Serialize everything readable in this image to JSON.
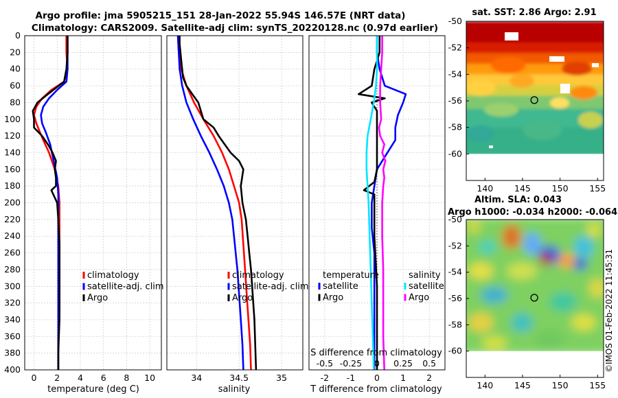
{
  "header": {
    "title_line1": "Argo profile: jma 5905215_151 28-Jan-2022 55.94S 146.57E (NRT data)",
    "title_line2": "Climatology: CARS2009. Satellite-adj clim: synTS_20220128.nc (0.97d earlier)"
  },
  "watermark": "©IMOS 01-Feb-2022 11:45:31",
  "colors": {
    "climatology": "#ff0000",
    "satellite": "#0000ff",
    "argo": "#000000",
    "salinity_satellite": "#00e5ff",
    "salinity_argo": "#ff00ff",
    "grid": "#c8c8c8"
  },
  "chart_data": [
    {
      "id": "temperature",
      "type": "line",
      "xlabel": "temperature (deg C)",
      "ylabel": "",
      "xlim": [
        -0.8,
        11
      ],
      "ylim": [
        400,
        0
      ],
      "xticks": [
        0,
        2,
        4,
        6,
        8,
        10
      ],
      "xtick_labels": [
        "0",
        "2",
        "4",
        "6",
        "8",
        "10"
      ],
      "yticks": [
        0,
        20,
        40,
        60,
        80,
        100,
        120,
        140,
        160,
        180,
        200,
        220,
        240,
        260,
        280,
        300,
        320,
        340,
        360,
        380,
        400
      ],
      "legend": {
        "position": "right",
        "items": [
          {
            "label": "climatology",
            "color": "#ff0000"
          },
          {
            "label": "satellite-adj. clim",
            "color": "#0000ff"
          },
          {
            "label": "Argo",
            "color": "#000000"
          }
        ]
      },
      "series": [
        {
          "name": "climatology",
          "color": "#ff0000",
          "x": [
            2.8,
            2.8,
            2.9,
            2.6,
            1.5,
            0.7,
            0.2,
            0.0,
            0.2,
            0.5,
            0.8,
            1.3,
            1.8,
            2.1,
            2.2,
            2.2,
            2.2,
            2.2,
            2.2,
            2.2,
            2.1,
            2.1,
            2.1
          ],
          "y": [
            0,
            20,
            40,
            55,
            65,
            75,
            85,
            95,
            105,
            115,
            125,
            140,
            160,
            180,
            200,
            220,
            250,
            280,
            300,
            330,
            360,
            390,
            400
          ]
        },
        {
          "name": "satellite-adj. clim",
          "color": "#0000ff",
          "x": [
            2.9,
            2.9,
            2.9,
            2.8,
            2.0,
            1.3,
            0.8,
            0.6,
            0.7,
            1.0,
            1.4,
            1.7,
            2.0,
            2.1,
            2.1,
            2.1,
            2.1,
            2.1,
            2.1,
            2.1,
            2.1
          ],
          "y": [
            0,
            20,
            40,
            55,
            65,
            75,
            85,
            95,
            105,
            115,
            130,
            150,
            170,
            190,
            210,
            240,
            280,
            310,
            340,
            380,
            400
          ]
        },
        {
          "name": "Argo",
          "color": "#000000",
          "x": [
            2.9,
            2.9,
            2.8,
            2.6,
            1.2,
            0.3,
            -0.1,
            0.0,
            0.0,
            0.7,
            1.2,
            1.6,
            1.9,
            1.8,
            1.9,
            1.9,
            1.5,
            2.0,
            2.1,
            2.2,
            2.2,
            2.2,
            2.1,
            2.1
          ],
          "y": [
            0,
            20,
            40,
            55,
            70,
            80,
            90,
            100,
            110,
            120,
            130,
            140,
            150,
            160,
            170,
            180,
            185,
            200,
            220,
            250,
            300,
            340,
            380,
            400
          ]
        }
      ]
    },
    {
      "id": "salinity",
      "type": "line",
      "xlabel": "salinity",
      "ylabel": "",
      "xlim": [
        33.65,
        35.25
      ],
      "ylim": [
        400,
        0
      ],
      "xticks": [
        34,
        34.5,
        35
      ],
      "xtick_labels": [
        "34",
        "34.5",
        "35"
      ],
      "legend": {
        "position": "right",
        "items": [
          {
            "label": "climatology",
            "color": "#ff0000"
          },
          {
            "label": "satellite-adj. clim",
            "color": "#0000ff"
          },
          {
            "label": "Argo",
            "color": "#000000"
          }
        ]
      },
      "series": [
        {
          "name": "climatology",
          "color": "#ff0000",
          "x": [
            33.78,
            33.79,
            33.82,
            33.88,
            33.97,
            34.08,
            34.2,
            34.3,
            34.38,
            34.44,
            34.5,
            34.53,
            34.55,
            34.57,
            34.59,
            34.61,
            34.63,
            34.64
          ],
          "y": [
            0,
            20,
            40,
            60,
            80,
            100,
            120,
            140,
            160,
            180,
            200,
            220,
            250,
            280,
            310,
            340,
            370,
            400
          ]
        },
        {
          "name": "satellite-adj. clim",
          "color": "#0000ff",
          "x": [
            33.78,
            33.79,
            33.8,
            33.83,
            33.88,
            33.96,
            34.05,
            34.15,
            34.24,
            34.32,
            34.38,
            34.42,
            34.45,
            34.48,
            34.5,
            34.52,
            34.54,
            34.55
          ],
          "y": [
            0,
            20,
            40,
            60,
            80,
            100,
            120,
            140,
            160,
            180,
            200,
            220,
            250,
            280,
            310,
            340,
            370,
            400
          ]
        },
        {
          "name": "Argo",
          "color": "#000000",
          "x": [
            33.8,
            33.8,
            33.82,
            33.84,
            33.88,
            33.95,
            34.02,
            34.08,
            34.2,
            34.26,
            34.33,
            34.4,
            34.5,
            34.55,
            34.52,
            34.54,
            34.58,
            34.6,
            34.62,
            34.64,
            34.66,
            34.68,
            34.69,
            34.7
          ],
          "y": [
            0,
            10,
            30,
            50,
            60,
            70,
            80,
            100,
            110,
            120,
            130,
            140,
            150,
            160,
            180,
            200,
            220,
            240,
            260,
            280,
            310,
            340,
            370,
            400
          ]
        }
      ]
    },
    {
      "id": "differences",
      "type": "line",
      "xlabel": "T difference from climatology",
      "top_axis_label": "S difference from climatology",
      "xlim": [
        -2.6,
        2.6
      ],
      "ylim": [
        400,
        0
      ],
      "xticks": [
        -2,
        -1,
        0,
        1,
        2
      ],
      "xtick_labels": [
        "-2",
        "-1",
        "0",
        "1",
        "2"
      ],
      "s_xticks": [
        -0.5,
        -0.25,
        0,
        0.25,
        0.5
      ],
      "s_xtick_labels": [
        "-0.5",
        "-0.25",
        "0",
        "0.25",
        "0.5"
      ],
      "s_xlim": [
        -0.65,
        0.65
      ],
      "legend": {
        "temperature_header": "temperature",
        "salinity_header": "salinity",
        "items": [
          {
            "label": "satellite",
            "color": "#0000ff",
            "group": "temperature"
          },
          {
            "label": "Argo",
            "color": "#000000",
            "group": "temperature"
          },
          {
            "label": "satellite",
            "color": "#00e5ff",
            "group": "salinity"
          },
          {
            "label": "Argo",
            "color": "#ff00ff",
            "group": "salinity"
          }
        ]
      },
      "series": [
        {
          "name": "T satellite",
          "color": "#0000ff",
          "units": "T",
          "x": [
            0.0,
            0.0,
            0.1,
            0.3,
            1.1,
            1.0,
            0.8,
            0.7,
            0.7,
            0.4,
            0.0,
            -0.1,
            -0.2,
            -0.2,
            -0.1,
            -0.1,
            -0.1,
            -0.1,
            -0.1
          ],
          "y": [
            0,
            20,
            40,
            60,
            70,
            80,
            95,
            110,
            125,
            140,
            160,
            180,
            200,
            230,
            260,
            300,
            340,
            380,
            400
          ]
        },
        {
          "name": "T Argo",
          "color": "#000000",
          "units": "T",
          "x": [
            0.1,
            0.1,
            -0.1,
            -0.2,
            -0.7,
            0.3,
            -0.2,
            0.0,
            0.0,
            0.0,
            0.0,
            0.0,
            -0.1,
            -0.5,
            -0.1,
            -0.1,
            -0.1,
            0.0,
            0.0,
            0.0
          ],
          "y": [
            0,
            20,
            40,
            60,
            70,
            75,
            80,
            90,
            100,
            120,
            140,
            160,
            175,
            185,
            190,
            200,
            240,
            300,
            360,
            400
          ]
        },
        {
          "name": "S satellite",
          "color": "#00e5ff",
          "units": "S",
          "x": [
            0.0,
            0.0,
            0.0,
            -0.01,
            -0.03,
            -0.06,
            -0.09,
            -0.1,
            -0.1,
            -0.09,
            -0.08,
            -0.07,
            -0.06,
            -0.05,
            -0.04,
            -0.03
          ],
          "y": [
            0,
            20,
            40,
            60,
            80,
            100,
            120,
            140,
            160,
            180,
            200,
            240,
            280,
            320,
            360,
            400
          ]
        },
        {
          "name": "S Argo",
          "color": "#ff00ff",
          "units": "S",
          "x": [
            0.05,
            0.05,
            0.04,
            0.03,
            0.03,
            0.04,
            0.02,
            0.03,
            0.07,
            0.05,
            0.08,
            0.06,
            0.07,
            0.06,
            0.05,
            0.05,
            0.06,
            0.06,
            0.06,
            0.07
          ],
          "y": [
            0,
            20,
            40,
            60,
            80,
            100,
            110,
            120,
            130,
            140,
            150,
            160,
            170,
            180,
            200,
            240,
            280,
            320,
            360,
            400
          ]
        }
      ]
    },
    {
      "id": "sst_map",
      "type": "heatmap",
      "title": "sat. SST: 2.86 Argo: 2.91",
      "xticks": [
        140,
        145,
        150,
        155
      ],
      "xtick_labels": [
        "140",
        "145",
        "150",
        "155"
      ],
      "yticks": [
        -50,
        -52,
        -54,
        -56,
        -58,
        -60
      ],
      "ytick_labels": [
        "-50",
        "-52",
        "-54",
        "-56",
        "-58",
        "-60"
      ],
      "xlim": [
        137.5,
        155.8
      ],
      "ylim": [
        -50,
        -62
      ],
      "data_ylim": [
        -50,
        -60
      ],
      "argo_position": {
        "lon": 146.57,
        "lat": -55.94
      }
    },
    {
      "id": "sla_map",
      "type": "heatmap",
      "title_line1": "Altim. SLA: 0.043",
      "title_line2": "Argo h1000: -0.034 h2000: -0.064",
      "xticks": [
        140,
        145,
        150,
        155
      ],
      "xtick_labels": [
        "140",
        "145",
        "150",
        "155"
      ],
      "yticks": [
        -50,
        -52,
        -54,
        -56,
        -58,
        -60
      ],
      "ytick_labels": [
        "-50",
        "-52",
        "-54",
        "-56",
        "-58",
        "-60"
      ],
      "xlim": [
        137.5,
        155.8
      ],
      "ylim": [
        -50,
        -62
      ],
      "data_ylim": [
        -50,
        -60
      ],
      "argo_position": {
        "lon": 146.57,
        "lat": -55.94
      }
    }
  ]
}
